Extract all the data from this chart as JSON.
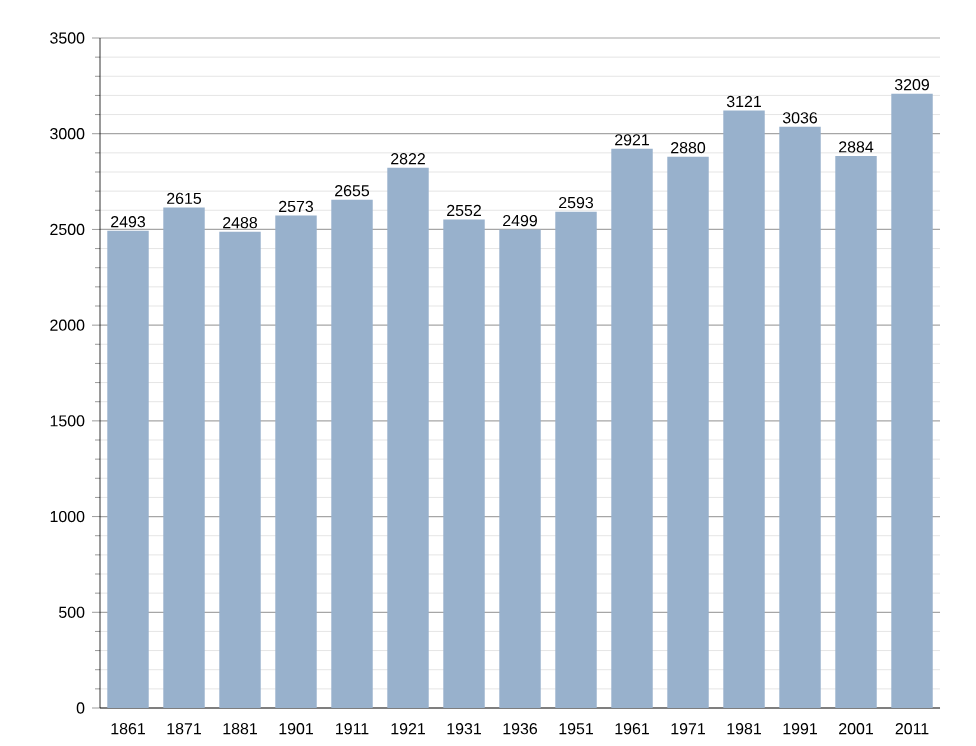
{
  "chart_data": {
    "type": "bar",
    "categories": [
      "1861",
      "1871",
      "1881",
      "1901",
      "1911",
      "1921",
      "1931",
      "1936",
      "1951",
      "1961",
      "1971",
      "1981",
      "1991",
      "2001",
      "2011"
    ],
    "values": [
      2493,
      2615,
      2488,
      2573,
      2655,
      2822,
      2552,
      2499,
      2593,
      2921,
      2880,
      3121,
      3036,
      2884,
      3209
    ],
    "color": "#98b1cc",
    "ylim": [
      0,
      3500
    ],
    "yticks": [
      0,
      500,
      1000,
      1500,
      2000,
      2500,
      3000,
      3500
    ],
    "grid": "y",
    "data_labels": true
  }
}
